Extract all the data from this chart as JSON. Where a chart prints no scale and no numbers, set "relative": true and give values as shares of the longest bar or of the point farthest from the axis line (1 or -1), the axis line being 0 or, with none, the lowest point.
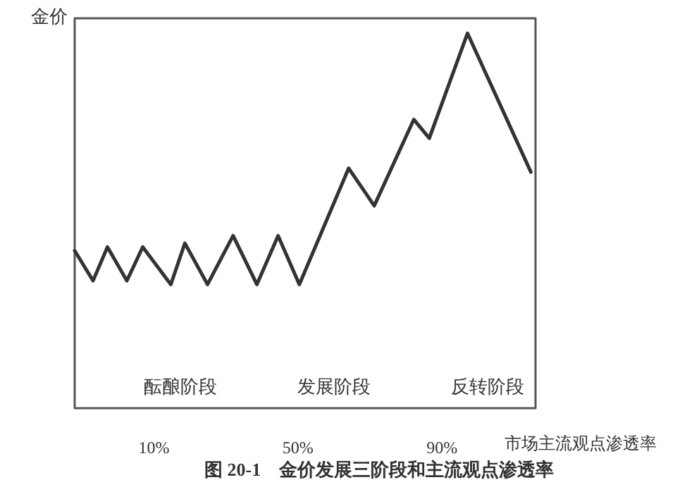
{
  "chart_data": {
    "type": "line",
    "title": "图 20-1　金价发展三阶段和主流观点渗透率",
    "xlabel": "市场主流观点渗透率",
    "ylabel": "金价",
    "relative": true,
    "x": [
      -12,
      -6.9,
      -2.9,
      2.5,
      6.9,
      14.7,
      18.6,
      24.9,
      32.0,
      38.6,
      44.5,
      50.4,
      64.1,
      71.2,
      82.2,
      86.5,
      97.1,
      114.7
    ],
    "series": [
      {
        "color": "#333333",
        "values": [
          0.42,
          0.34,
          0.43,
          0.34,
          0.43,
          0.33,
          0.44,
          0.33,
          0.46,
          0.33,
          0.46,
          0.33,
          0.64,
          0.54,
          0.77,
          0.72,
          1,
          0.63
        ]
      }
    ],
    "xlim": [
      -12,
      116
    ],
    "xticks": [
      {
        "value": 10,
        "label": "10%"
      },
      {
        "value": 50,
        "label": "50%"
      },
      {
        "value": 90,
        "label": "90%"
      }
    ],
    "annotations": [
      "酝酿阶段",
      "发展阶段",
      "反转阶段"
    ],
    "grid": false,
    "marker": "none",
    "line_style": "solid"
  }
}
